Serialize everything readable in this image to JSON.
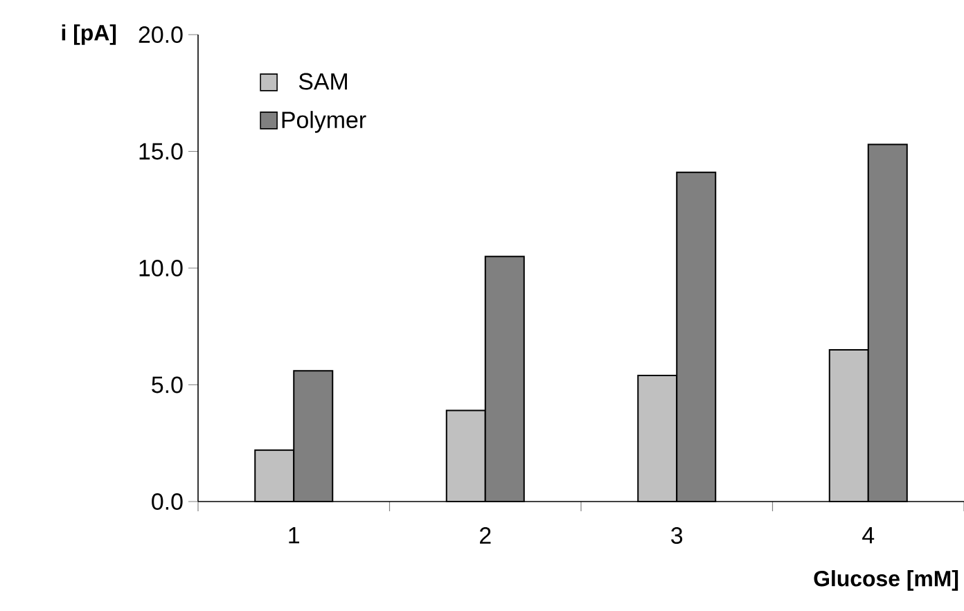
{
  "chart_data": {
    "type": "bar",
    "xlabel": "Glucose [mM]",
    "ylabel": "i [pA]",
    "categories": [
      "1",
      "2",
      "3",
      "4"
    ],
    "series": [
      {
        "name": "SAM",
        "color": "#c0c0c0",
        "values": [
          2.2,
          3.9,
          5.4,
          6.5
        ]
      },
      {
        "name": "Polymer",
        "color": "#808080",
        "values": [
          5.6,
          10.5,
          14.1,
          15.3
        ]
      }
    ],
    "ylim": [
      0,
      20
    ],
    "yticks": [
      {
        "value": 0,
        "label": "0.0"
      },
      {
        "value": 5,
        "label": "5.0"
      },
      {
        "value": 10,
        "label": "10.0"
      },
      {
        "value": 15,
        "label": "15.0"
      },
      {
        "value": 20,
        "label": "20.0"
      }
    ],
    "grid": false,
    "legend": "top left"
  }
}
